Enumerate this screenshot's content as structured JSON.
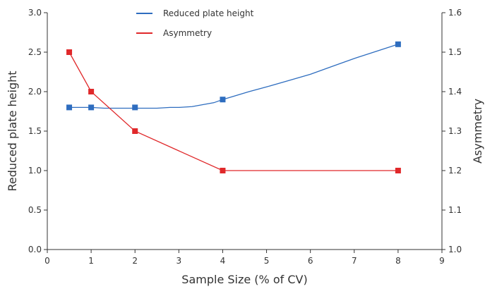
{
  "chart_data": {
    "type": "line",
    "title": "",
    "xlabel": "Sample Size (% of CV)",
    "ylabel": "Reduced plate height",
    "y2label": "Asymmetry",
    "xlim": [
      0,
      9
    ],
    "ylim": [
      0,
      3.0
    ],
    "y2lim": [
      1.0,
      1.6
    ],
    "x_ticks": [
      "0",
      "1",
      "2",
      "3",
      "4",
      "5",
      "6",
      "7",
      "8",
      "9"
    ],
    "y_ticks": [
      "0.0",
      "0.5",
      "1.0",
      "1.5",
      "2.0",
      "2.5",
      "3.0"
    ],
    "y2_ticks": [
      "1.0",
      "1.1",
      "1.2",
      "1.3",
      "1.4",
      "1.5",
      "1.6"
    ],
    "grid": false,
    "legend_position": "top-center",
    "series": [
      {
        "name": "Reduced plate height",
        "axis": "left",
        "color": "#2e6dbf",
        "marker": "square",
        "x": [
          0.5,
          1,
          2,
          4,
          8
        ],
        "y": [
          1.8,
          1.8,
          1.8,
          1.9,
          2.6
        ],
        "curve_x": [
          0.5,
          1,
          1.3,
          1.5,
          2,
          2.5,
          2.8,
          3.0,
          3.3,
          3.5,
          3.8,
          4.0,
          4.3,
          4.6,
          5.0,
          5.5,
          6.0,
          6.5,
          7.0,
          7.5,
          8.0
        ],
        "curve_y": [
          1.8,
          1.8,
          1.79,
          1.79,
          1.79,
          1.79,
          1.8,
          1.8,
          1.81,
          1.83,
          1.86,
          1.9,
          1.95,
          2.0,
          2.06,
          2.14,
          2.22,
          2.32,
          2.42,
          2.51,
          2.6
        ]
      },
      {
        "name": "Asymmetry",
        "axis": "right",
        "color": "#e0282a",
        "marker": "square",
        "x": [
          0.5,
          1,
          2,
          4,
          8
        ],
        "y": [
          1.5,
          1.4,
          1.3,
          1.2,
          1.2
        ]
      }
    ]
  }
}
